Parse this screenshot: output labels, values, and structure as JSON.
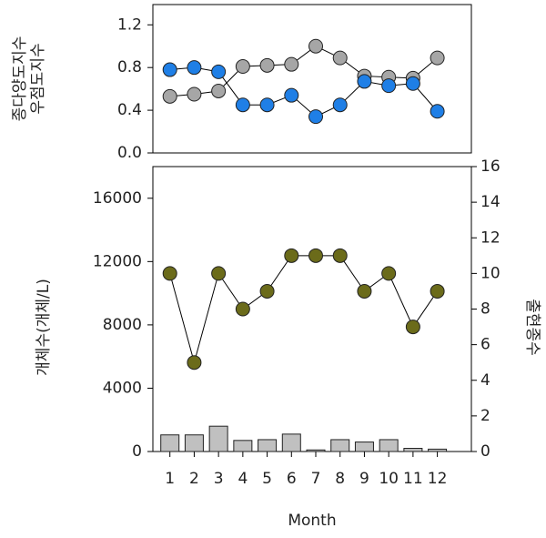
{
  "chart_data": [
    {
      "type": "line",
      "ylabel": [
        "종다양도지수",
        "우점도지수"
      ],
      "x": [
        1,
        2,
        3,
        4,
        5,
        6,
        7,
        8,
        9,
        10,
        11,
        12
      ],
      "xlim": [
        0.3,
        13.4
      ],
      "ylim": [
        0,
        1.39
      ],
      "yticks": [
        {
          "value": 0,
          "label": "0.0"
        },
        {
          "value": 0.4,
          "label": "0.4"
        },
        {
          "value": 0.8,
          "label": "0.8"
        },
        {
          "value": 1.2,
          "label": "1.2"
        }
      ],
      "series": [
        {
          "color": "#a6a6a6",
          "values": [
            0.53,
            0.55,
            0.58,
            0.81,
            0.82,
            0.83,
            1.0,
            0.89,
            0.72,
            0.71,
            0.7,
            0.89
          ]
        },
        {
          "color": "#1f7fe6",
          "values": [
            0.78,
            0.8,
            0.76,
            0.45,
            0.45,
            0.54,
            0.34,
            0.45,
            0.67,
            0.63,
            0.65,
            0.39
          ]
        }
      ]
    },
    {
      "type": "bar-line",
      "xlabel": "Month",
      "ylabel": "개체수(개체/L)",
      "y2label": "출현종수",
      "x": [
        1,
        2,
        3,
        4,
        5,
        6,
        7,
        8,
        9,
        10,
        11,
        12
      ],
      "xlim": [
        0.3,
        13.4
      ],
      "xticks": [
        1,
        2,
        3,
        4,
        5,
        6,
        7,
        8,
        9,
        10,
        11,
        12
      ],
      "ylim": [
        0,
        18000
      ],
      "yticks": [
        0,
        4000,
        8000,
        12000,
        16000
      ],
      "y2lim": [
        0,
        16
      ],
      "y2ticks": [
        0,
        2,
        4,
        6,
        8,
        10,
        12,
        14,
        16
      ],
      "series": [
        {
          "type": "bar",
          "color": "#c0c0c0",
          "values": [
            1050,
            1050,
            1600,
            700,
            750,
            1100,
            100,
            750,
            600,
            750,
            200,
            150
          ]
        },
        {
          "type": "line",
          "axis": "y2",
          "color": "#6b6b1a",
          "values": [
            10,
            5,
            10,
            8,
            9,
            11,
            11,
            11,
            9,
            10,
            7,
            9
          ]
        }
      ]
    }
  ]
}
